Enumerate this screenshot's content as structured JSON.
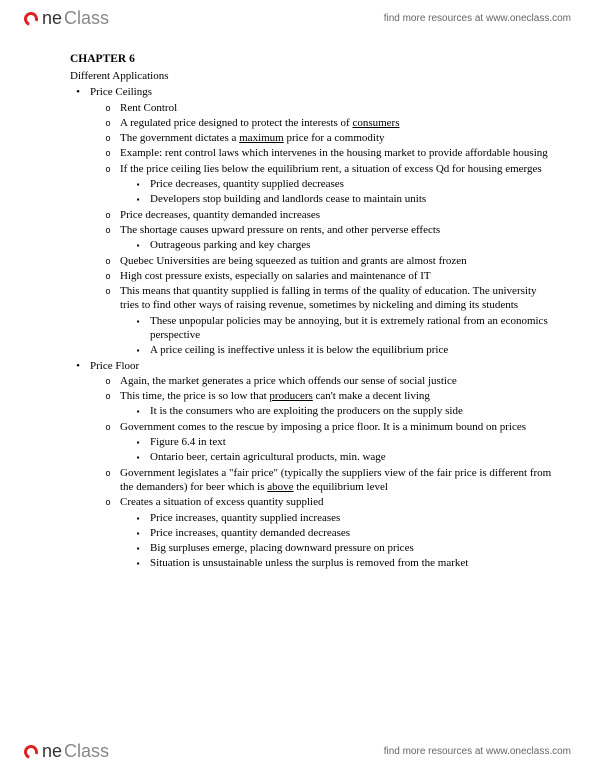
{
  "header": {
    "logo_one": "ne",
    "logo_class": "Class",
    "tagline": "find more resources at www.oneclass.com"
  },
  "footer": {
    "logo_one": "ne",
    "logo_class": "Class",
    "tagline": "find more resources at www.oneclass.com"
  },
  "doc": {
    "chapter_title": "CHAPTER 6",
    "subtitle": "Different Applications",
    "sections": [
      {
        "title": "Price Ceilings",
        "items": [
          {
            "t": "Rent Control"
          },
          {
            "pre": "A regulated price designed to protect the interests of ",
            "u": "consumers"
          },
          {
            "pre": "The government dictates a ",
            "u": "maximum",
            "post": " price for a commodity"
          },
          {
            "t": "Example: rent control laws which intervenes in the housing market to provide affordable housing"
          },
          {
            "t": "If the price ceiling lies below the equilibrium rent, a situation of excess Qd for housing emerges",
            "sub": [
              {
                "t": "Price decreases, quantity supplied decreases"
              },
              {
                "t": "Developers stop building and landlords cease to maintain units"
              }
            ]
          },
          {
            "t": "Price decreases, quantity demanded increases"
          },
          {
            "t": "The shortage causes upward pressure on rents, and other perverse effects",
            "sub": [
              {
                "t": "Outrageous parking and key charges"
              }
            ]
          },
          {
            "t": "Quebec Universities are being squeezed as tuition and grants are almost frozen"
          },
          {
            "t": "High cost pressure exists, especially on salaries and maintenance of IT"
          },
          {
            "t": "This means that quantity supplied is falling in terms of the quality of education. The university tries to find other ways of raising revenue, sometimes by nickeling and diming its students",
            "sub": [
              {
                "t": "These unpopular policies may be annoying, but it is extremely rational from an economics perspective"
              },
              {
                "t": "A price ceiling is ineffective unless it is below the equilibrium price"
              }
            ]
          }
        ]
      },
      {
        "title": "Price Floor",
        "items": [
          {
            "t": "Again, the market generates a price which offends our sense of social justice"
          },
          {
            "pre": "This time, the price is so low that ",
            "u": "producers",
            "post": " can't make a decent living",
            "sub": [
              {
                "t": "It is the consumers who are exploiting the producers on the supply side"
              }
            ]
          },
          {
            "t": "Government comes to the rescue by imposing a price floor. It is a minimum bound on prices",
            "sub": [
              {
                "t": "Figure 6.4 in text"
              },
              {
                "t": "Ontario beer, certain agricultural products, min. wage"
              }
            ]
          },
          {
            "pre": "Government legislates a \"fair price\" (typically the suppliers view of the fair price is different from the demanders) for beer which is ",
            "u": "above",
            "post": " the equilibrium level"
          },
          {
            "t": "Creates a situation of excess quantity supplied",
            "sub": [
              {
                "t": "Price increases, quantity supplied increases"
              },
              {
                "t": "Price increases, quantity demanded decreases"
              },
              {
                "t": "Big surpluses emerge, placing downward pressure on prices"
              },
              {
                "t": "Situation is unsustainable unless the surplus is removed from the market"
              }
            ]
          }
        ]
      }
    ]
  }
}
